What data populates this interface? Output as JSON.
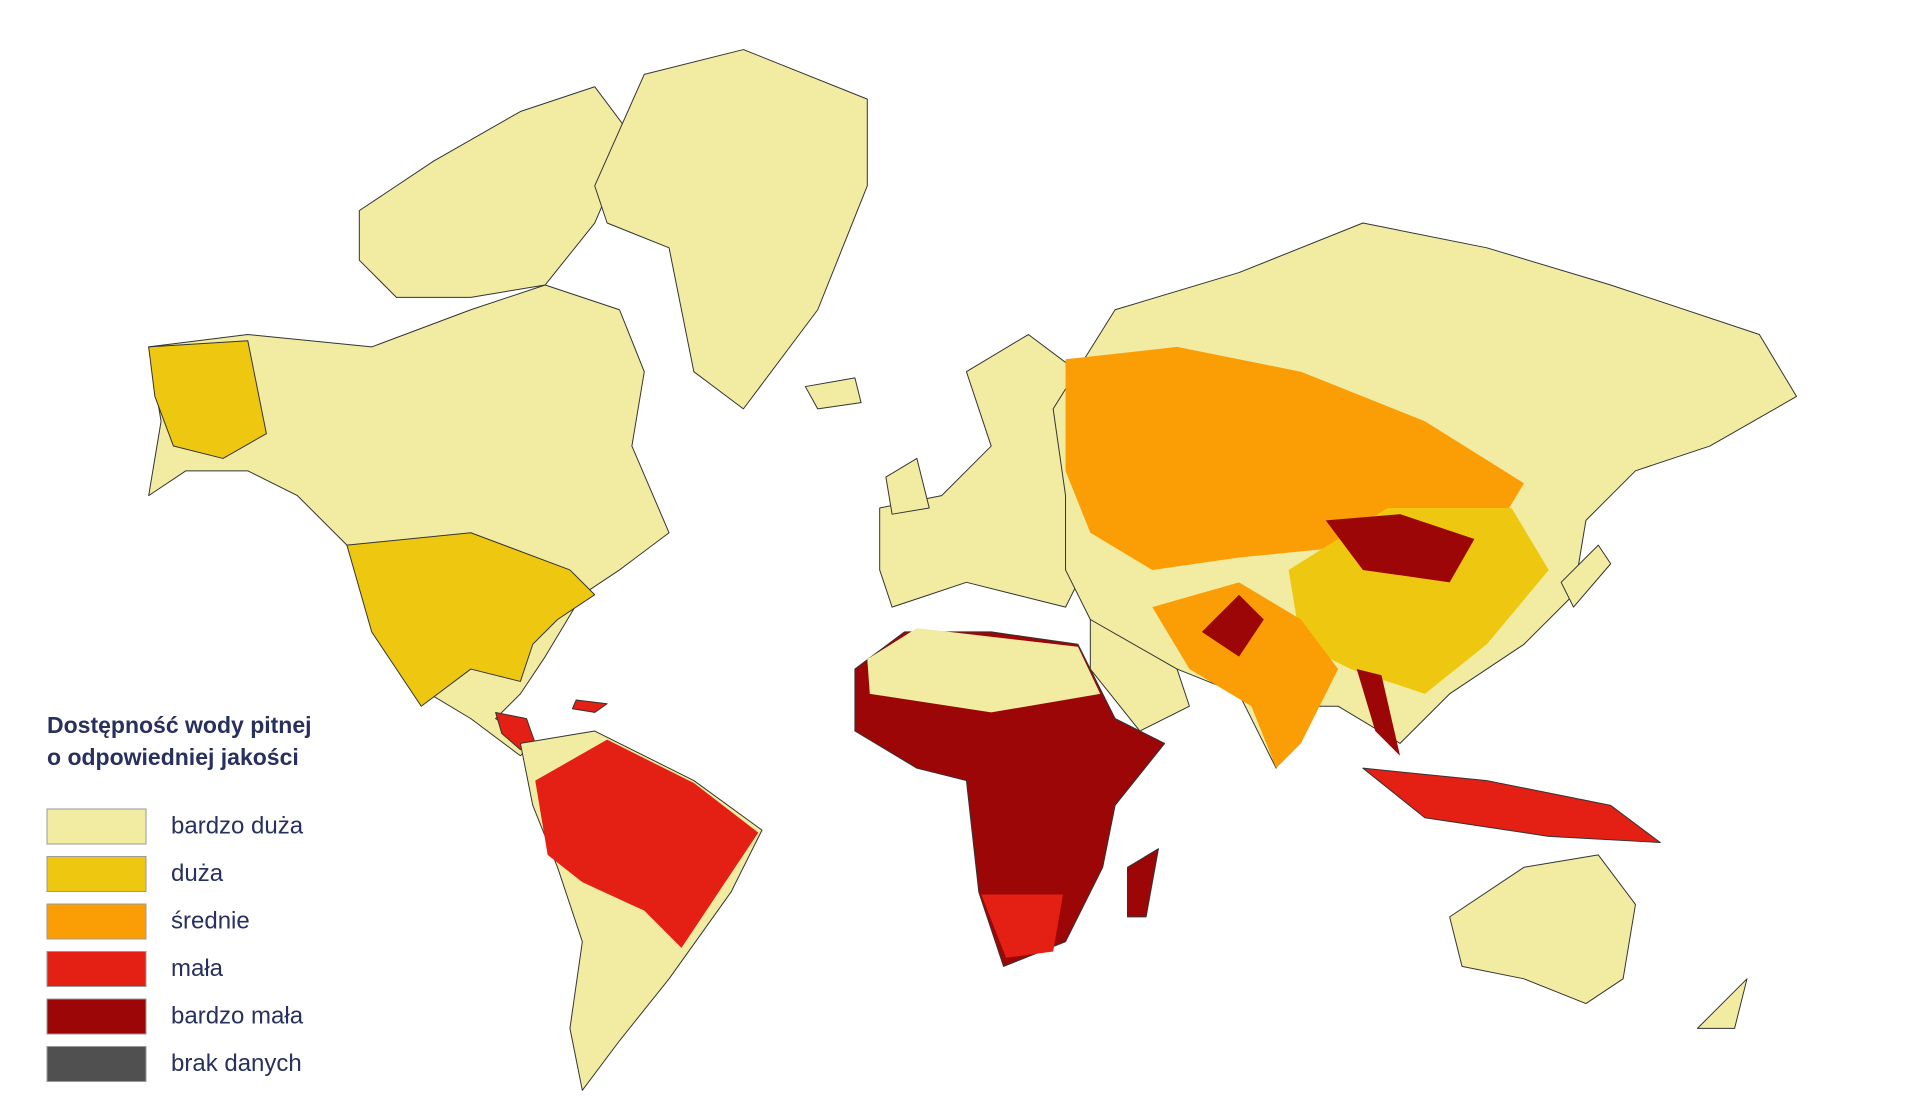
{
  "legend": {
    "title_lines": [
      "Dostępność wody pitnej",
      "o odpowiedniej jakości"
    ],
    "items": [
      {
        "label": "bardzo duża",
        "color": "#f1eca2"
      },
      {
        "label": "duża",
        "color": "#eec710"
      },
      {
        "label": "średnie",
        "color": "#fb9e06"
      },
      {
        "label": "mała",
        "color": "#e41f13"
      },
      {
        "label": "bardzo mała",
        "color": "#9c0606"
      },
      {
        "label": "brak danych",
        "color": "#505050"
      }
    ]
  }
}
